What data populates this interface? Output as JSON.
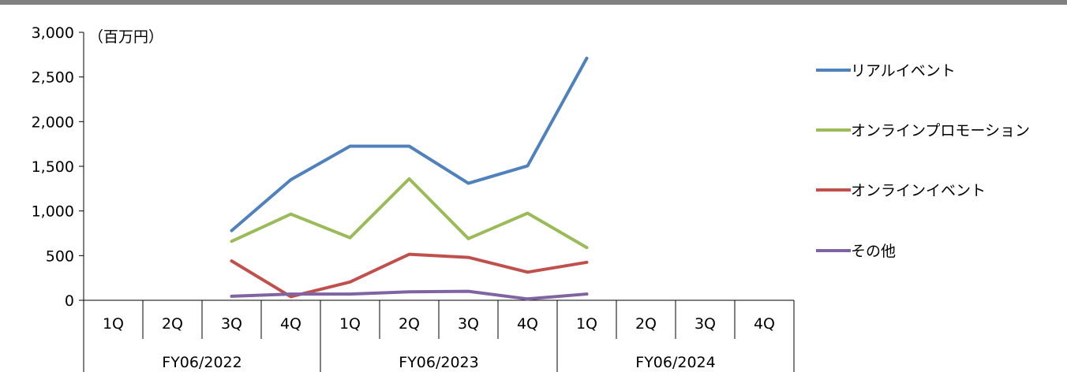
{
  "chart_data": {
    "type": "line",
    "unit_label": "（百万円）",
    "ylim": [
      0,
      3000
    ],
    "yticks": [
      "3,000",
      "2,500",
      "2,000",
      "1,500",
      "1,000",
      "500",
      "0"
    ],
    "ytick_values": [
      3000,
      2500,
      2000,
      1500,
      1000,
      500,
      0
    ],
    "categories": [
      "1Q",
      "2Q",
      "3Q",
      "4Q",
      "1Q",
      "2Q",
      "3Q",
      "4Q",
      "1Q",
      "2Q",
      "3Q",
      "4Q"
    ],
    "groups": [
      "FY06/2022",
      "FY06/2023",
      "FY06/2024"
    ],
    "series": [
      {
        "name": "リアルイベント",
        "color": "#4f81bd",
        "values": [
          null,
          null,
          780,
          1350,
          1725,
          1725,
          1310,
          1505,
          2710,
          null,
          null,
          null
        ]
      },
      {
        "name": "オンラインプロモーション",
        "color": "#9bbb59",
        "values": [
          null,
          null,
          660,
          965,
          700,
          1360,
          690,
          975,
          590,
          null,
          null,
          null
        ]
      },
      {
        "name": "オンラインイベント",
        "color": "#c0504d",
        "values": [
          null,
          null,
          440,
          40,
          205,
          515,
          480,
          315,
          425,
          null,
          null,
          null
        ]
      },
      {
        "name": "その他",
        "color": "#8064a2",
        "values": [
          null,
          null,
          45,
          70,
          70,
          95,
          100,
          15,
          70,
          null,
          null,
          null
        ]
      }
    ],
    "legend_position": "right",
    "grid": false
  }
}
